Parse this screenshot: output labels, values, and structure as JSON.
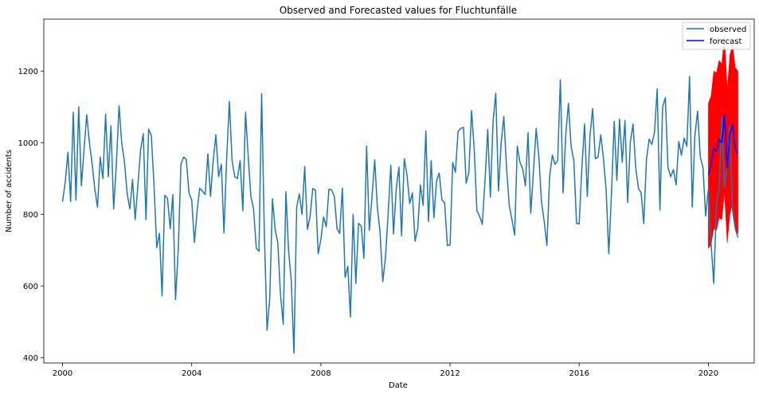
{
  "chart_data": {
    "type": "line",
    "title": "Observed and Forecasted values for Fluchtunfälle",
    "xlabel": "Date",
    "ylabel": "Number of accidents",
    "xlim": [
      1999.42,
      2021.42
    ],
    "ylim": [
      385,
      1345
    ],
    "x_ticks": [
      {
        "value": 2000,
        "label": "2000"
      },
      {
        "value": 2004,
        "label": "2004"
      },
      {
        "value": 2008,
        "label": "2008"
      },
      {
        "value": 2012,
        "label": "2012"
      },
      {
        "value": 2016,
        "label": "2016"
      },
      {
        "value": 2020,
        "label": "2020"
      }
    ],
    "y_ticks": [
      {
        "value": 400,
        "label": "400"
      },
      {
        "value": 600,
        "label": "600"
      },
      {
        "value": 800,
        "label": "800"
      },
      {
        "value": 1000,
        "label": "1000"
      },
      {
        "value": 1200,
        "label": "1200"
      }
    ],
    "grid": false,
    "legend": {
      "position": "top-right",
      "entries": [
        {
          "label": "observed",
          "color": "#1f77b4"
        },
        {
          "label": "forecast",
          "color": "#0000ff"
        }
      ]
    },
    "x_start": "2000-01",
    "x_frequency": "monthly",
    "series": [
      {
        "name": "observed",
        "color": "#1f77b4",
        "values": [
          835,
          890,
          973,
          836,
          1085,
          840,
          1100,
          880,
          980,
          1078,
          1000,
          940,
          870,
          820,
          960,
          900,
          1080,
          905,
          1047,
          815,
          940,
          1103,
          1000,
          948,
          860,
          815,
          897,
          785,
          880,
          980,
          1025,
          785,
          1038,
          1020,
          880,
          707,
          747,
          572,
          853,
          845,
          760,
          855,
          562,
          700,
          940,
          960,
          953,
          860,
          840,
          722,
          810,
          873,
          865,
          855,
          969,
          850,
          950,
          1022,
          905,
          940,
          748,
          955,
          1115,
          950,
          905,
          900,
          950,
          810,
          1085,
          960,
          850,
          815,
          705,
          697,
          1137,
          750,
          476,
          565,
          843,
          760,
          720,
          575,
          493,
          863,
          700,
          615,
          412,
          820,
          857,
          800,
          933,
          758,
          795,
          872,
          867,
          690,
          730,
          793,
          765,
          870,
          868,
          850,
          760,
          747,
          873,
          624,
          655,
          513,
          800,
          607,
          775,
          767,
          677,
          990,
          755,
          850,
          952,
          820,
          750,
          612,
          680,
          800,
          937,
          745,
          870,
          932,
          740,
          955,
          910,
          830,
          860,
          725,
          760,
          882,
          825,
          1033,
          780,
          950,
          790,
          895,
          915,
          840,
          832,
          713,
          714,
          945,
          917,
          1032,
          1040,
          1043,
          887,
          917,
          1090,
          980,
          810,
          795,
          772,
          895,
          1037,
          848,
          1060,
          1138,
          865,
          1000,
          1073,
          930,
          825,
          785,
          742,
          990,
          945,
          927,
          880,
          1028,
          803,
          920,
          1040,
          960,
          835,
          780,
          713,
          905,
          965,
          940,
          950,
          1176,
          860,
          1020,
          1110,
          990,
          950,
          775,
          773,
          930,
          1052,
          850,
          1020,
          1095,
          955,
          960,
          1022,
          955,
          870,
          690,
          860,
          1060,
          895,
          1066,
          945,
          1062,
          833,
          1000,
          1052,
          930,
          873,
          860,
          774,
          953,
          1010,
          995,
          1030,
          1150,
          812,
          1100,
          1126,
          930,
          905,
          925,
          882,
          1003,
          965,
          1013,
          990,
          1185,
          820,
          1020,
          1088,
          960,
          930,
          795,
          870,
          720,
          607,
          830,
          870,
          1070,
          875,
          940,
          1045,
          810,
          760,
          735
        ]
      },
      {
        "name": "forecast",
        "color": "#0000ff",
        "start": "2020-01",
        "values": [
          910,
          935,
          985,
          975,
          1010,
          1000,
          1080,
          930,
          1025,
          1050,
          985,
          970
        ],
        "ci_lower": [
          705,
          715,
          760,
          755,
          790,
          785,
          860,
          720,
          800,
          830,
          760,
          745
        ],
        "ci_upper": [
          1110,
          1130,
          1200,
          1195,
          1230,
          1220,
          1300,
          1150,
          1245,
          1275,
          1210,
          1200
        ],
        "ci_color": "#ff0000"
      }
    ]
  }
}
